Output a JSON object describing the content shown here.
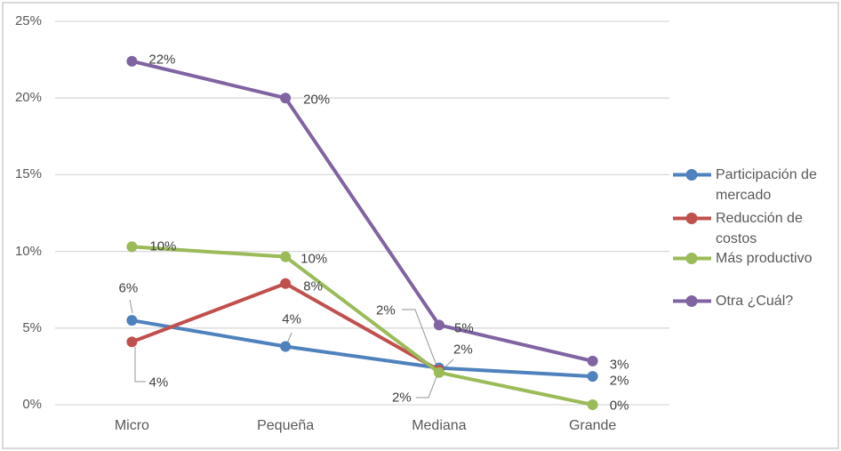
{
  "chart_data": {
    "type": "line",
    "title": "",
    "categories": [
      "Micro",
      "Pequeña",
      "Mediana",
      "Grande"
    ],
    "y_axis": {
      "tick_labels": [
        "0%",
        "5%",
        "10%",
        "15%",
        "20%",
        "25%"
      ],
      "tick_values": [
        0,
        5,
        10,
        15,
        20,
        25
      ],
      "range": [
        0,
        25
      ],
      "grid": true
    },
    "series": [
      {
        "name": "Participación de mercado",
        "color": "#4F81BD",
        "values": [
          5.5,
          3.8,
          2.4,
          1.85
        ],
        "point_labels": [
          "6%",
          "4%",
          "2%",
          "2%"
        ]
      },
      {
        "name": "Reducción de costos",
        "color": "#C0504D",
        "values": [
          4.1,
          7.9,
          2.25,
          null
        ],
        "point_labels": [
          "4%",
          "8%",
          "2%",
          null
        ]
      },
      {
        "name": "Más productivo",
        "color": "#9BBB59",
        "values": [
          10.3,
          9.65,
          2.1,
          0
        ],
        "point_labels": [
          "10%",
          "10%",
          "2%",
          "0%"
        ]
      },
      {
        "name": "Otra ¿Cuál?",
        "color": "#8064A2",
        "values": [
          22.4,
          20,
          5.2,
          2.85
        ],
        "point_labels": [
          "22%",
          "20%",
          "5%",
          "3%"
        ]
      }
    ],
    "legend": {
      "position": "right",
      "entries": [
        "Participación de mercado",
        "Reducción de costos",
        "Más productivo",
        "Otra ¿Cuál?"
      ]
    }
  },
  "style": {
    "background": "#FFFFFF",
    "border_color": "#D9D9D9",
    "gridline_color": "#D9D9D9",
    "axis_text_color": "#595959",
    "data_label_color": "#404040",
    "leader_line_color": "#A6A6A6"
  }
}
